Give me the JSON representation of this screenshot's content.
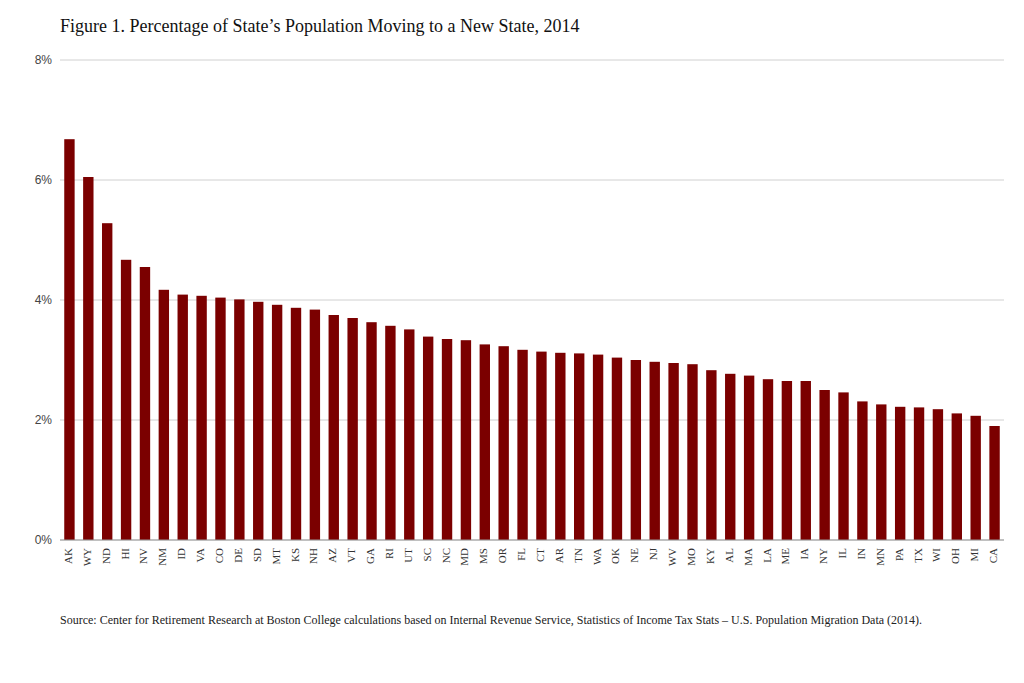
{
  "chart_data": {
    "type": "bar",
    "title": "Figure 1. Percentage of State’s Population Moving to a New State, 2014",
    "categories": [
      "AK",
      "WY",
      "ND",
      "HI",
      "NV",
      "NM",
      "ID",
      "VA",
      "CO",
      "DE",
      "SD",
      "MT",
      "KS",
      "NH",
      "AZ",
      "VT",
      "GA",
      "RI",
      "UT",
      "SC",
      "NC",
      "MD",
      "MS",
      "OR",
      "FL",
      "CT",
      "AR",
      "TN",
      "WA",
      "OK",
      "NE",
      "NJ",
      "WV",
      "MO",
      "KY",
      "AL",
      "MA",
      "LA",
      "ME",
      "IA",
      "NY",
      "IL",
      "IN",
      "MN",
      "PA",
      "TX",
      "WI",
      "OH",
      "MI",
      "CA"
    ],
    "values": [
      6.68,
      6.05,
      5.28,
      4.67,
      4.55,
      4.17,
      4.09,
      4.07,
      4.04,
      4.01,
      3.97,
      3.92,
      3.87,
      3.84,
      3.75,
      3.7,
      3.63,
      3.57,
      3.51,
      3.39,
      3.35,
      3.33,
      3.26,
      3.23,
      3.17,
      3.14,
      3.12,
      3.11,
      3.09,
      3.04,
      3.0,
      2.97,
      2.95,
      2.93,
      2.83,
      2.77,
      2.74,
      2.68,
      2.65,
      2.65,
      2.5,
      2.46,
      2.31,
      2.26,
      2.22,
      2.21,
      2.18,
      2.11,
      2.07,
      1.9
    ],
    "color": "#7B0000",
    "ylim": [
      0,
      8
    ],
    "yticks": [
      {
        "value": 0,
        "label": "0%"
      },
      {
        "value": 2,
        "label": "2%"
      },
      {
        "value": 4,
        "label": "4%"
      },
      {
        "value": 6,
        "label": "6%"
      },
      {
        "value": 8,
        "label": "8%"
      }
    ],
    "grid": true,
    "annotations": [
      "Source: Center for Retirement Research at Boston College calculations based on Internal Revenue Service, Statistics of Income Tax Stats – U.S. Population Migration Data (2014)."
    ]
  }
}
